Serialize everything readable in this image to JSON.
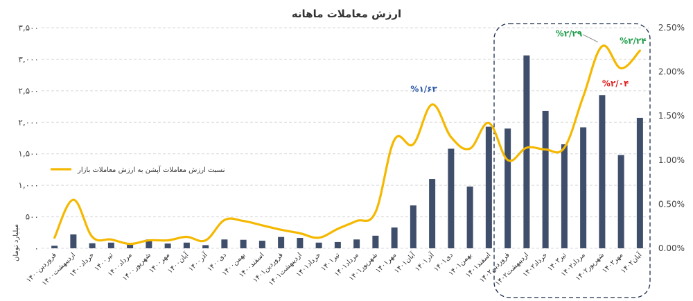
{
  "chart_data": {
    "type": "bar",
    "title": "ارزش معاملات ماهانه",
    "ylabel": "میلیارد تومان",
    "ylim": [
      0,
      3500
    ],
    "y_ticks": [
      "۰",
      "۵۰۰",
      "۱,۰۰۰",
      "۱,۵۰۰",
      "۲,۰۰۰",
      "۲,۵۰۰",
      "۳,۰۰۰",
      "۳,۵۰۰"
    ],
    "y2lim": [
      0,
      2.5
    ],
    "y2_ticks": [
      "0.00%",
      "0.50%",
      "1.00%",
      "1.50%",
      "2.00%",
      "2.50%"
    ],
    "categories": [
      "فروردین۱۴۰۰",
      "اردیبهشت۱۴۰۰",
      "خرداد۱۴۰۰",
      "تیر۱۴۰۰",
      "مرداد۱۴۰۰",
      "شهریور۱۴۰۰",
      "مهر۱۴۰۰",
      "آبان۱۴۰۰",
      "آذر۱۴۰۰",
      "دی۱۴۰۰",
      "بهمن۱۴۰۰",
      "اسفند۱۴۰۰",
      "فروردین۱۴۰۱",
      "اردیبهشت۱۴۰۱",
      "خرداد۱۴۰۱",
      "تیر۱۴۰۱",
      "مرداد۱۴۰۱",
      "شهریور۱۴۰۱",
      "مهر۱۴۰۱",
      "آبان۱۴۰۱",
      "آذر۱۴۰۱",
      "دی۱۴۰۱",
      "بهمن۱۴۰۱",
      "اسفند۱۴۰۱",
      "فروردین۱۴۰۲",
      "اردیبهشت۱۴۰۲",
      "خرداد۱۴۰۲",
      "تیر۱۴۰۲",
      "مرداد۱۴۰۲",
      "شهریور۱۴۰۲",
      "مهر۱۴۰۲",
      "آبان۱۴۰۲"
    ],
    "series": [
      {
        "name": "",
        "axis": "left",
        "type": "bar",
        "color": "#3f4e6b",
        "values": [
          40,
          220,
          80,
          90,
          60,
          140,
          75,
          90,
          50,
          140,
          135,
          120,
          180,
          165,
          90,
          100,
          140,
          200,
          330,
          680,
          1100,
          1580,
          980,
          1930,
          1900,
          3060,
          2180,
          1650,
          1920,
          2430,
          1480,
          2070
        ]
      },
      {
        "name": "نسبت ارزش معاملات آپشن به ارزش معاملات بازار",
        "axis": "right",
        "type": "line",
        "color": "#f5b800",
        "values": [
          0.12,
          0.55,
          0.13,
          0.1,
          0.05,
          0.09,
          0.09,
          0.13,
          0.09,
          0.32,
          0.31,
          0.26,
          0.21,
          0.17,
          0.12,
          0.22,
          0.31,
          0.41,
          1.23,
          1.18,
          1.63,
          1.26,
          1.13,
          1.42,
          1.0,
          1.14,
          1.12,
          1.14,
          1.72,
          2.29,
          2.04,
          2.24
        ]
      }
    ],
    "annotations": [
      {
        "text": "%۱/۶۳",
        "color": "#2e5aa8"
      },
      {
        "text": "%۲/۲۹",
        "color": "#1f9e4a"
      },
      {
        "text": "%۲/۰۴",
        "color": "#e02020"
      },
      {
        "text": "%۲/۲۴",
        "color": "#1f9e4a"
      }
    ],
    "highlight_label": "",
    "grid": true,
    "legend_position": "middle-left"
  }
}
